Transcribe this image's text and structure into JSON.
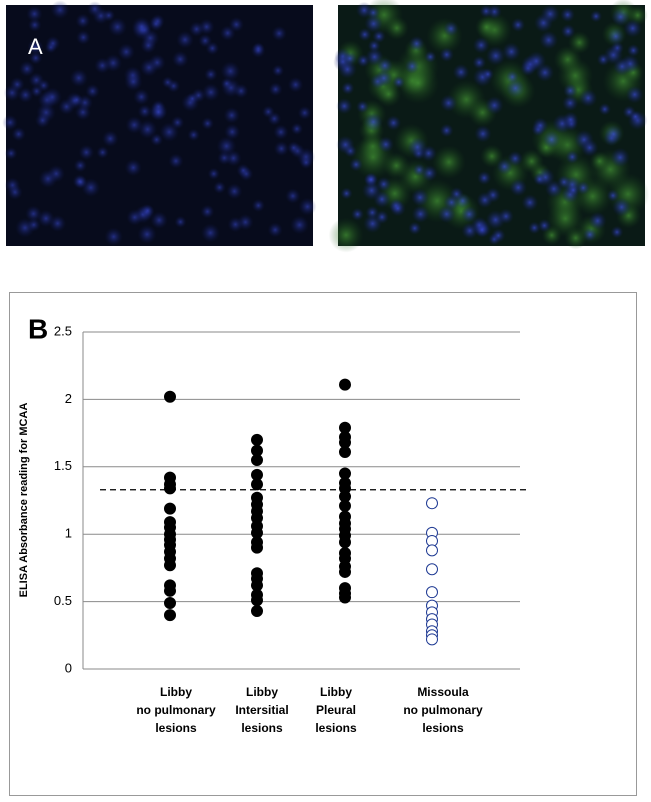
{
  "panel_a_label": "A",
  "chart_data": {
    "type": "dot",
    "panel_label": "B",
    "y_label": "ELISA Absorbance reading for MCAA",
    "categories": [
      [
        "Libby",
        "no pulmonary",
        "lesions"
      ],
      [
        "Libby",
        "Intersitial",
        "lesions"
      ],
      [
        "Libby",
        "Pleural",
        "lesions"
      ],
      [
        "Missoula",
        "no pulmonary",
        "lesions"
      ]
    ],
    "values": [
      [
        2.02,
        1.42,
        1.37,
        1.34,
        1.19,
        1.09,
        1.05,
        1.0,
        0.96,
        0.92,
        0.87,
        0.82,
        0.77,
        0.62,
        0.58,
        0.49,
        0.4
      ],
      [
        1.7,
        1.62,
        1.55,
        1.44,
        1.37,
        1.27,
        1.22,
        1.17,
        1.12,
        1.06,
        1.01,
        0.94,
        0.9,
        0.71,
        0.67,
        0.62,
        0.55,
        0.51,
        0.43
      ],
      [
        2.11,
        1.79,
        1.72,
        1.68,
        1.61,
        1.45,
        1.38,
        1.34,
        1.28,
        1.21,
        1.13,
        1.08,
        1.04,
        0.99,
        0.94,
        0.86,
        0.82,
        0.76,
        0.72,
        0.6,
        0.56,
        0.53
      ],
      [
        1.23,
        1.01,
        0.95,
        0.88,
        0.74,
        0.57,
        0.47,
        0.42,
        0.37,
        0.33,
        0.28,
        0.25,
        0.22
      ]
    ],
    "colors": [
      "#000000",
      "#000000",
      "#000000",
      "#1f3a93"
    ],
    "filled": [
      true,
      true,
      true,
      false
    ],
    "threshold": 1.33,
    "ylim": [
      0,
      2.5
    ],
    "yticks": [
      0,
      0.5,
      1,
      1.5,
      2,
      2.5
    ],
    "grid": true
  }
}
